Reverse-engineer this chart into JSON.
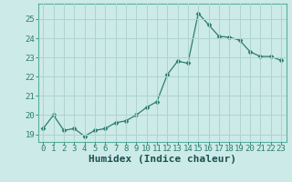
{
  "x": [
    0,
    1,
    2,
    3,
    4,
    5,
    6,
    7,
    8,
    9,
    10,
    11,
    12,
    13,
    14,
    15,
    16,
    17,
    18,
    19,
    20,
    21,
    22,
    23
  ],
  "y": [
    19.3,
    20.0,
    19.2,
    19.3,
    18.9,
    19.2,
    19.3,
    19.6,
    19.7,
    20.0,
    20.4,
    20.7,
    22.1,
    22.8,
    22.7,
    25.3,
    24.7,
    24.1,
    24.05,
    23.9,
    23.3,
    23.05,
    23.05,
    22.85
  ],
  "line_color": "#2d7d6f",
  "marker": "D",
  "marker_size": 2.5,
  "bg_color": "#cceae8",
  "grid_color": "#aed4d0",
  "xlabel": "Humidex (Indice chaleur)",
  "ylim": [
    18.6,
    25.8
  ],
  "yticks": [
    19,
    20,
    21,
    22,
    23,
    24,
    25
  ],
  "xticks": [
    0,
    1,
    2,
    3,
    4,
    5,
    6,
    7,
    8,
    9,
    10,
    11,
    12,
    13,
    14,
    15,
    16,
    17,
    18,
    19,
    20,
    21,
    22,
    23
  ],
  "tick_color": "#2d7d6f",
  "label_color": "#1a5050",
  "font_size": 6.5,
  "xlabel_fontsize": 8.0,
  "spine_color": "#5aada0"
}
